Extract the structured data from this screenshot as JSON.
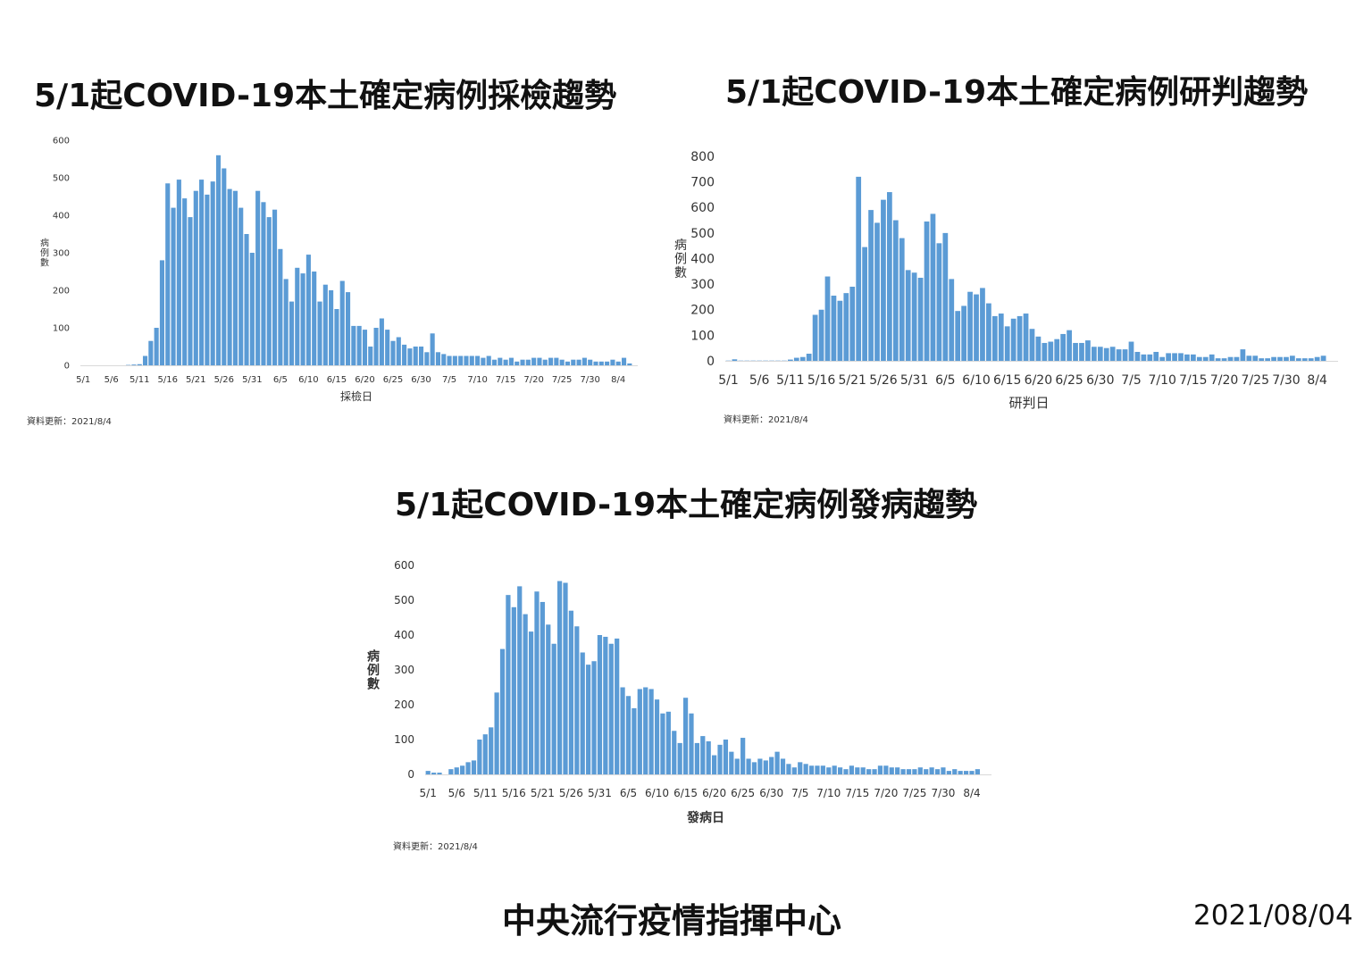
{
  "footer": {
    "org": "中央流行疫情指揮中心",
    "date": "2021/08/04"
  },
  "colors": {
    "bar": "#5b9bd5",
    "axis": "#d9d9d9",
    "text": "#333333"
  },
  "chart_data": [
    {
      "type": "bar",
      "title": "5/1起COVID-19本土確定病例採檢趨勢",
      "xlabel": "採檢日",
      "ylabel": "病例數",
      "update_note": "資料更新：2021/8/4",
      "ylim": [
        0,
        600
      ],
      "yticks": [
        0,
        100,
        200,
        300,
        400,
        500,
        600
      ],
      "x_start": "5/1",
      "xticks": [
        "5/1",
        "5/6",
        "5/11",
        "5/16",
        "5/21",
        "5/26",
        "5/31",
        "6/5",
        "6/10",
        "6/15",
        "6/20",
        "6/25",
        "6/30",
        "7/5",
        "7/10",
        "7/15",
        "7/20",
        "7/25",
        "7/30",
        "8/4"
      ],
      "values": [
        0,
        0,
        0,
        0,
        0,
        0,
        0,
        0,
        1,
        2,
        3,
        25,
        65,
        100,
        280,
        485,
        420,
        495,
        445,
        395,
        465,
        495,
        455,
        490,
        560,
        525,
        470,
        465,
        420,
        350,
        300,
        465,
        435,
        395,
        415,
        310,
        230,
        170,
        260,
        245,
        295,
        250,
        170,
        215,
        200,
        150,
        225,
        195,
        105,
        105,
        95,
        50,
        100,
        125,
        95,
        65,
        75,
        55,
        45,
        50,
        50,
        35,
        85,
        35,
        30,
        25,
        25,
        25,
        25,
        25,
        25,
        20,
        25,
        15,
        20,
        15,
        20,
        10,
        15,
        15,
        20,
        20,
        15,
        20,
        20,
        15,
        10,
        15,
        15,
        20,
        15,
        10,
        10,
        10,
        15,
        10,
        20,
        5
      ]
    },
    {
      "type": "bar",
      "title": "5/1起COVID-19本土確定病例研判趨勢",
      "xlabel": "研判日",
      "ylabel": "病例數",
      "update_note": "資料更新：2021/8/4",
      "ylim": [
        0,
        800
      ],
      "yticks": [
        0,
        100,
        200,
        300,
        400,
        500,
        600,
        700,
        800
      ],
      "x_start": "5/1",
      "xticks": [
        "5/1",
        "5/6",
        "5/11",
        "5/16",
        "5/21",
        "5/26",
        "5/31",
        "6/5",
        "6/10",
        "6/15",
        "6/20",
        "6/25",
        "6/30",
        "7/5",
        "7/10",
        "7/15",
        "7/20",
        "7/25",
        "7/30",
        "8/4"
      ],
      "values": [
        1,
        6,
        1,
        1,
        1,
        1,
        1,
        1,
        1,
        1,
        5,
        12,
        15,
        28,
        180,
        200,
        330,
        255,
        235,
        265,
        290,
        720,
        445,
        590,
        540,
        630,
        660,
        550,
        480,
        355,
        345,
        325,
        545,
        575,
        460,
        500,
        320,
        195,
        215,
        270,
        260,
        285,
        225,
        175,
        185,
        135,
        165,
        175,
        185,
        125,
        95,
        70,
        75,
        85,
        105,
        120,
        70,
        70,
        80,
        55,
        55,
        50,
        55,
        45,
        45,
        75,
        35,
        25,
        25,
        35,
        15,
        30,
        30,
        30,
        25,
        25,
        15,
        15,
        25,
        10,
        10,
        15,
        15,
        45,
        20,
        20,
        10,
        10,
        15,
        15,
        15,
        20,
        10,
        10,
        10,
        15,
        20,
        0
      ]
    },
    {
      "type": "bar",
      "title": "5/1起COVID-19本土確定病例發病趨勢",
      "xlabel": "發病日",
      "ylabel": "病例數",
      "update_note": "資料更新：2021/8/4",
      "ylim": [
        0,
        600
      ],
      "yticks": [
        0,
        100,
        200,
        300,
        400,
        500,
        600
      ],
      "x_start": "5/1",
      "xticks": [
        "5/1",
        "5/6",
        "5/11",
        "5/16",
        "5/21",
        "5/26",
        "5/31",
        "6/5",
        "6/10",
        "6/15",
        "6/20",
        "6/25",
        "6/30",
        "7/5",
        "7/10",
        "7/15",
        "7/20",
        "7/25",
        "7/30",
        "8/4"
      ],
      "values": [
        10,
        5,
        5,
        0,
        15,
        20,
        25,
        35,
        40,
        100,
        115,
        135,
        235,
        360,
        515,
        480,
        540,
        460,
        410,
        525,
        495,
        430,
        375,
        555,
        550,
        470,
        425,
        350,
        315,
        325,
        400,
        395,
        375,
        390,
        250,
        225,
        190,
        245,
        250,
        245,
        215,
        175,
        180,
        125,
        90,
        220,
        175,
        90,
        110,
        95,
        55,
        85,
        100,
        65,
        45,
        105,
        45,
        35,
        45,
        40,
        50,
        65,
        45,
        30,
        20,
        35,
        30,
        25,
        25,
        25,
        20,
        25,
        20,
        15,
        25,
        20,
        20,
        15,
        15,
        25,
        25,
        20,
        20,
        15,
        15,
        15,
        20,
        15,
        20,
        15,
        20,
        10,
        15,
        10,
        10,
        10,
        15,
        0
      ]
    }
  ]
}
